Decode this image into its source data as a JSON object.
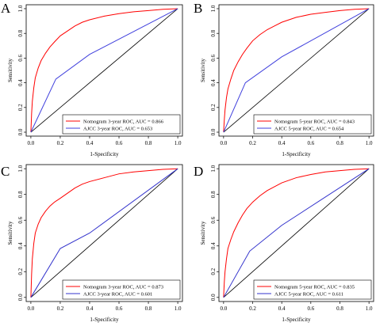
{
  "chart_data": [
    {
      "type": "line",
      "panel_label": "A",
      "xlabel": "1-Specificity",
      "ylabel": "Sensitivity",
      "xlim": [
        0,
        1
      ],
      "ylim": [
        0,
        1
      ],
      "x_ticks": [
        "0.0",
        "0.2",
        "0.4",
        "0.6",
        "0.8",
        "1.0"
      ],
      "y_ticks": [
        "0.0",
        "0.2",
        "0.4",
        "0.6",
        "0.8",
        "1.0"
      ],
      "grid": false,
      "legend_position": "bottom-right",
      "colors": {
        "nomogram": "#ff0000",
        "ajcc": "#4040dd",
        "diagonal": "#000000"
      },
      "series": [
        {
          "name": "Nomogram 3-year ROC, AUC = 0.866",
          "x": [
            0,
            0.005,
            0.01,
            0.02,
            0.03,
            0.05,
            0.07,
            0.1,
            0.13,
            0.16,
            0.2,
            0.25,
            0.3,
            0.35,
            0.4,
            0.5,
            0.6,
            0.7,
            0.8,
            0.9,
            1.0
          ],
          "y": [
            0,
            0.15,
            0.25,
            0.36,
            0.44,
            0.52,
            0.58,
            0.64,
            0.69,
            0.73,
            0.78,
            0.82,
            0.86,
            0.89,
            0.91,
            0.94,
            0.96,
            0.975,
            0.985,
            0.995,
            1.0
          ]
        },
        {
          "name": "AJCC 3-year ROC, AUC = 0.653",
          "x": [
            0,
            0.17,
            0.4,
            1.0
          ],
          "y": [
            0,
            0.43,
            0.63,
            1.0
          ]
        }
      ]
    },
    {
      "type": "line",
      "panel_label": "B",
      "xlabel": "1-Specificity",
      "ylabel": "Sensitivity",
      "xlim": [
        0,
        1
      ],
      "ylim": [
        0,
        1
      ],
      "x_ticks": [
        "0.0",
        "0.2",
        "0.4",
        "0.6",
        "0.8",
        "1.0"
      ],
      "y_ticks": [
        "0.0",
        "0.2",
        "0.4",
        "0.6",
        "0.8",
        "1.0"
      ],
      "grid": false,
      "legend_position": "bottom-right",
      "colors": {
        "nomogram": "#ff0000",
        "ajcc": "#4040dd",
        "diagonal": "#000000"
      },
      "series": [
        {
          "name": "Nomogram 5-year ROC, AUC = 0.843",
          "x": [
            0,
            0.005,
            0.01,
            0.02,
            0.03,
            0.05,
            0.07,
            0.1,
            0.13,
            0.16,
            0.2,
            0.25,
            0.3,
            0.35,
            0.4,
            0.5,
            0.6,
            0.7,
            0.8,
            0.9,
            1.0
          ],
          "y": [
            0,
            0.1,
            0.18,
            0.28,
            0.35,
            0.43,
            0.5,
            0.57,
            0.63,
            0.68,
            0.74,
            0.79,
            0.83,
            0.86,
            0.89,
            0.93,
            0.955,
            0.97,
            0.985,
            0.995,
            1.0
          ]
        },
        {
          "name": "AJCC 5-year ROC, AUC = 0.654",
          "x": [
            0,
            0.15,
            0.4,
            1.0
          ],
          "y": [
            0,
            0.4,
            0.61,
            1.0
          ]
        }
      ]
    },
    {
      "type": "line",
      "panel_label": "C",
      "xlabel": "1-Specificity",
      "ylabel": "Sensitivity",
      "xlim": [
        0,
        1
      ],
      "ylim": [
        0,
        1
      ],
      "x_ticks": [
        "0.0",
        "0.2",
        "0.4",
        "0.6",
        "0.8",
        "1.0"
      ],
      "y_ticks": [
        "0.0",
        "0.2",
        "0.4",
        "0.6",
        "0.8",
        "1.0"
      ],
      "grid": false,
      "legend_position": "bottom-right",
      "colors": {
        "nomogram": "#ff0000",
        "ajcc": "#3333cc",
        "diagonal": "#000000"
      },
      "series": [
        {
          "name": "Nomogram 3-year ROC, AUC = 0.873",
          "x": [
            0,
            0.005,
            0.01,
            0.02,
            0.03,
            0.05,
            0.07,
            0.1,
            0.13,
            0.16,
            0.2,
            0.25,
            0.3,
            0.35,
            0.4,
            0.5,
            0.6,
            0.7,
            0.8,
            0.9,
            1.0
          ],
          "y": [
            0,
            0.18,
            0.3,
            0.42,
            0.5,
            0.57,
            0.62,
            0.67,
            0.71,
            0.74,
            0.77,
            0.81,
            0.85,
            0.88,
            0.9,
            0.93,
            0.96,
            0.975,
            0.985,
            0.995,
            1.0
          ]
        },
        {
          "name": "AJCC 3-year ROC, AUC = 0.601",
          "x": [
            0,
            0.2,
            0.4,
            1.0
          ],
          "y": [
            0,
            0.38,
            0.5,
            1.0
          ]
        }
      ]
    },
    {
      "type": "line",
      "panel_label": "D",
      "xlabel": "1-Specificity",
      "ylabel": "Sensitivity",
      "xlim": [
        0,
        1
      ],
      "ylim": [
        0,
        1
      ],
      "x_ticks": [
        "0.0",
        "0.2",
        "0.4",
        "0.6",
        "0.8",
        "1.0"
      ],
      "y_ticks": [
        "0.0",
        "0.2",
        "0.4",
        "0.6",
        "0.8",
        "1.0"
      ],
      "grid": false,
      "legend_position": "bottom-right",
      "colors": {
        "nomogram": "#ff0000",
        "ajcc": "#3333cc",
        "diagonal": "#000000"
      },
      "series": [
        {
          "name": "Nomogram 5-year ROC, AUC = 0.835",
          "x": [
            0,
            0.005,
            0.01,
            0.02,
            0.03,
            0.05,
            0.07,
            0.1,
            0.13,
            0.16,
            0.2,
            0.25,
            0.3,
            0.35,
            0.4,
            0.5,
            0.6,
            0.7,
            0.8,
            0.9,
            1.0
          ],
          "y": [
            0,
            0.12,
            0.2,
            0.3,
            0.38,
            0.45,
            0.51,
            0.58,
            0.64,
            0.69,
            0.74,
            0.79,
            0.83,
            0.86,
            0.89,
            0.93,
            0.955,
            0.975,
            0.985,
            0.995,
            1.0
          ]
        },
        {
          "name": "AJCC 5-year ROC, AUC = 0.611",
          "x": [
            0,
            0.18,
            0.4,
            1.0
          ],
          "y": [
            0,
            0.36,
            0.56,
            1.0
          ]
        }
      ]
    }
  ]
}
